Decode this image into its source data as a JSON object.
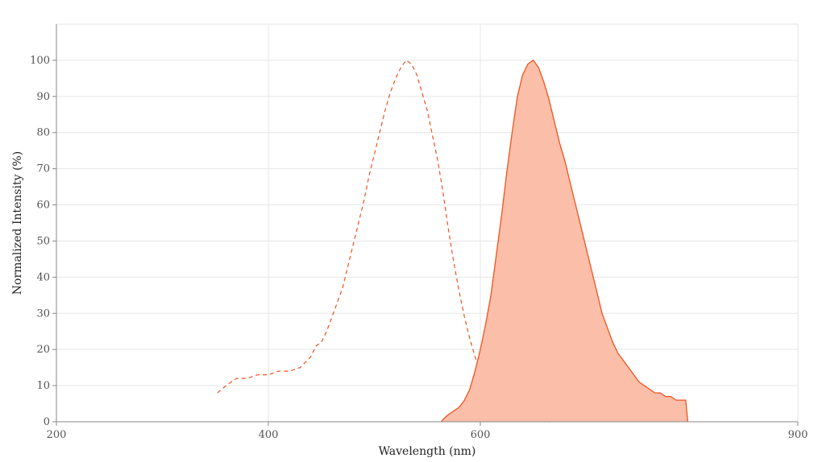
{
  "chart_data": {
    "type": "area",
    "xlabel": "Wavelength (nm)",
    "ylabel": "Normalized Intensity (%)",
    "xlim": [
      200,
      900
    ],
    "ylim": [
      0,
      110
    ],
    "x_ticks": [
      200,
      400,
      600,
      900
    ],
    "y_ticks": [
      0,
      10,
      20,
      30,
      40,
      50,
      60,
      70,
      80,
      90,
      100
    ],
    "grid": true,
    "legend": "none",
    "series": [
      {
        "style": "dashed line",
        "color": "#f0531f",
        "x": [
          352,
          360,
          370,
          380,
          390,
          400,
          410,
          420,
          430,
          440,
          445,
          450,
          455,
          460,
          465,
          470,
          475,
          480,
          485,
          490,
          495,
          500,
          505,
          510,
          515,
          520,
          525,
          530,
          535,
          540,
          545,
          550,
          555,
          560,
          565,
          570,
          575,
          580,
          585,
          590,
          595,
          600,
          605,
          610,
          615,
          620,
          625,
          630,
          640,
          650,
          660,
          665
        ],
        "y": [
          8,
          10,
          12,
          12,
          13,
          13,
          14,
          14,
          15,
          18,
          21,
          22,
          25,
          29,
          33,
          37,
          43,
          49,
          55,
          61,
          68,
          74,
          80,
          86,
          91,
          95,
          98,
          100,
          99,
          96,
          91,
          86,
          79,
          72,
          63,
          53,
          44,
          36,
          29,
          23,
          18,
          14,
          11,
          8,
          5,
          4,
          3,
          2,
          1,
          1,
          0,
          0
        ]
      },
      {
        "style": "filled area",
        "color": "#f0531f",
        "fill": "#fbbea8",
        "x": [
          563,
          566,
          570,
          575,
          580,
          585,
          590,
          595,
          600,
          605,
          610,
          615,
          620,
          625,
          630,
          635,
          640,
          645,
          650,
          655,
          660,
          665,
          670,
          675,
          680,
          685,
          690,
          695,
          700,
          705,
          710,
          715,
          720,
          725,
          730,
          735,
          740,
          745,
          750,
          755,
          760,
          765,
          770,
          775,
          780,
          785,
          790,
          794,
          796
        ],
        "y": [
          0,
          1,
          2,
          3,
          4,
          6,
          9,
          14,
          20,
          27,
          35,
          46,
          57,
          69,
          80,
          90,
          96,
          99,
          100,
          98,
          94,
          89,
          83,
          77,
          72,
          66,
          60,
          54,
          48,
          42,
          36,
          30,
          26,
          22,
          19,
          17,
          15,
          13,
          11,
          10,
          9,
          8,
          8,
          7,
          7,
          6,
          6,
          6,
          0
        ]
      }
    ]
  }
}
